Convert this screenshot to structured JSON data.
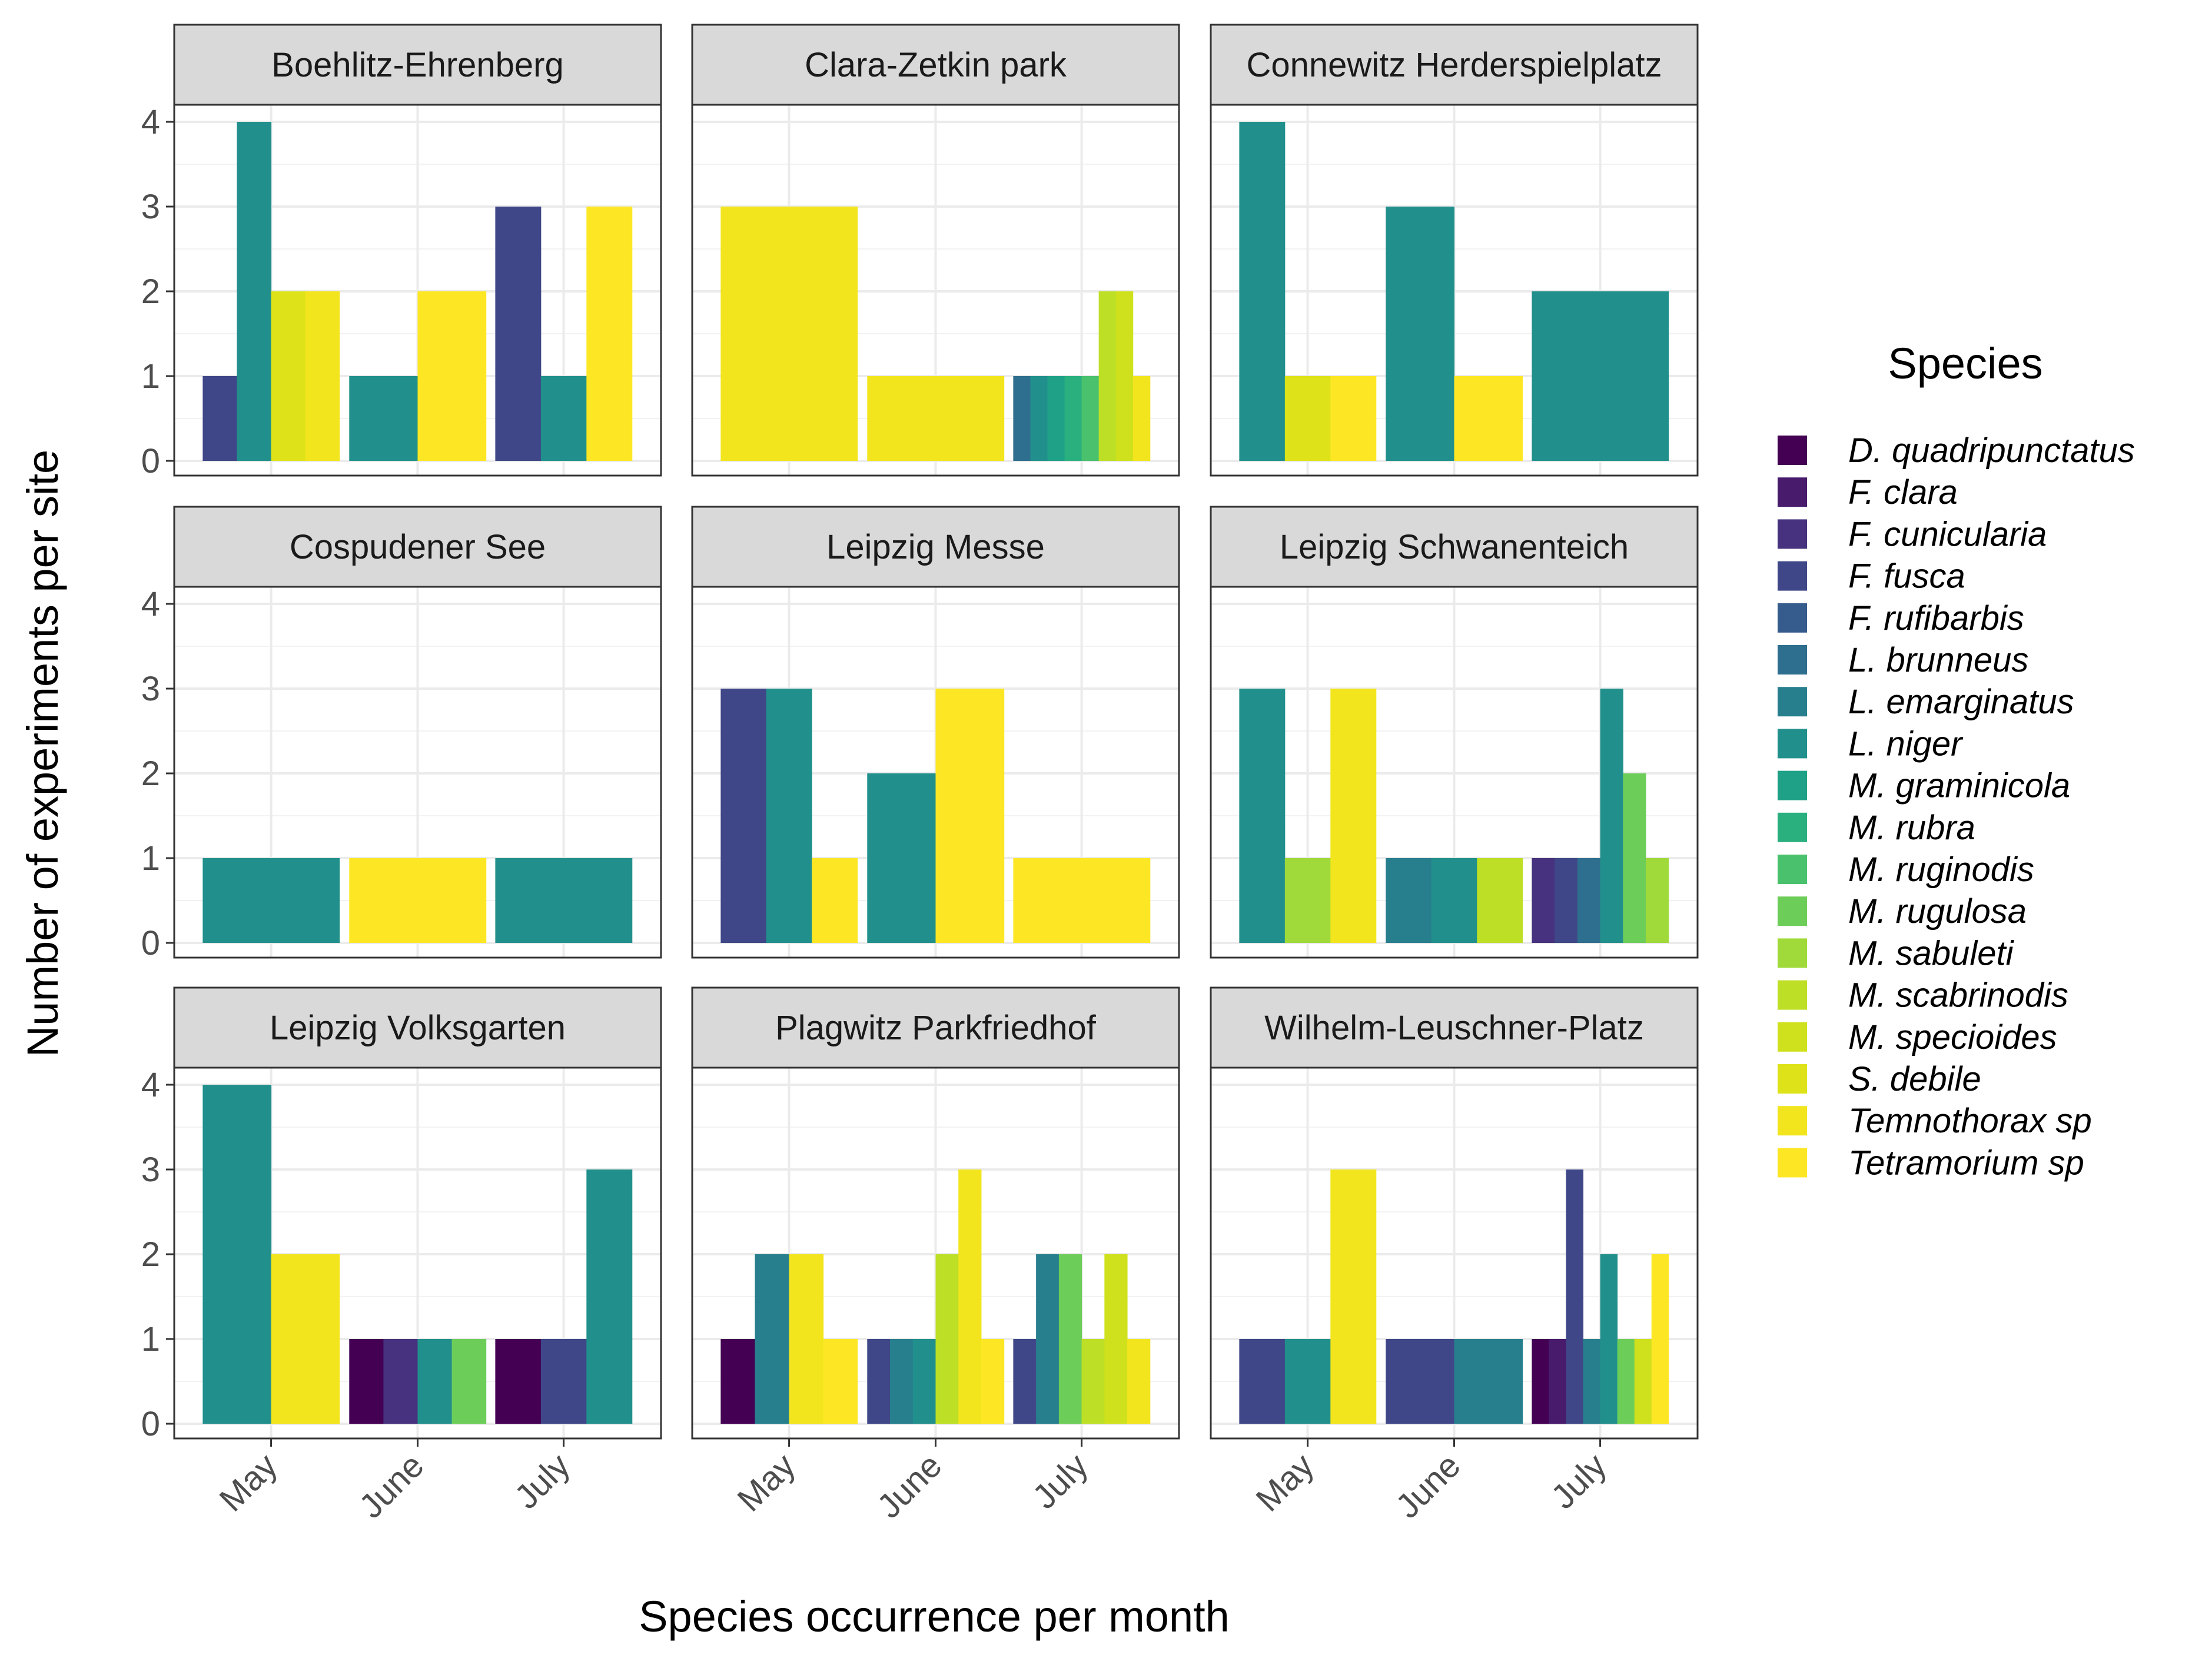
{
  "chart_data": {
    "type": "bar",
    "xlabel": "Species occurrence per month",
    "ylabel": "Number of experiments per site",
    "ylim": [
      0,
      4
    ],
    "y_ticks": [
      "0",
      "1",
      "2",
      "3",
      "4"
    ],
    "months": [
      "May",
      "June",
      "July"
    ],
    "grid": true,
    "legend": {
      "title": "Species",
      "position": "right"
    },
    "species": [
      {
        "name": "D. quadripunctatus",
        "color": "#440154"
      },
      {
        "name": "F. clara",
        "color": "#481B6D"
      },
      {
        "name": "F. cunicularia",
        "color": "#46327E"
      },
      {
        "name": "F. fusca",
        "color": "#3F4788"
      },
      {
        "name": "F. rufibarbis",
        "color": "#365C8D"
      },
      {
        "name": "L. brunneus",
        "color": "#2E6E8E"
      },
      {
        "name": "L. emarginatus",
        "color": "#277F8E"
      },
      {
        "name": "L. niger",
        "color": "#21908C"
      },
      {
        "name": "M. graminicola",
        "color": "#1FA187"
      },
      {
        "name": "M. rubra",
        "color": "#2AB07F"
      },
      {
        "name": "M. ruginodis",
        "color": "#4AC16D"
      },
      {
        "name": "M. rugulosa",
        "color": "#6DCD59"
      },
      {
        "name": "M. sabuleti",
        "color": "#9FDA3A"
      },
      {
        "name": "M. scabrinodis",
        "color": "#BDDF26"
      },
      {
        "name": "M. specioides",
        "color": "#CFE11C"
      },
      {
        "name": "S. debile",
        "color": "#DDE318"
      },
      {
        "name": "Temnothorax sp",
        "color": "#F2E51D"
      },
      {
        "name": "Tetramorium sp",
        "color": "#FDE725"
      }
    ],
    "panels": [
      {
        "site": "Boehlitz-Ehrenberg",
        "bars": [
          {
            "month": "May",
            "species": "F. fusca",
            "value": 1
          },
          {
            "month": "May",
            "species": "L. niger",
            "value": 4
          },
          {
            "month": "May",
            "species": "S. debile",
            "value": 2
          },
          {
            "month": "May",
            "species": "Temnothorax sp",
            "value": 2
          },
          {
            "month": "June",
            "species": "L. niger",
            "value": 1
          },
          {
            "month": "June",
            "species": "Tetramorium sp",
            "value": 2
          },
          {
            "month": "July",
            "species": "F. fusca",
            "value": 3
          },
          {
            "month": "July",
            "species": "L. niger",
            "value": 1
          },
          {
            "month": "July",
            "species": "Tetramorium sp",
            "value": 3
          }
        ]
      },
      {
        "site": "Clara-Zetkin park",
        "bars": [
          {
            "month": "May",
            "species": "Temnothorax sp",
            "value": 3
          },
          {
            "month": "June",
            "species": "Temnothorax sp",
            "value": 1
          },
          {
            "month": "July",
            "species": "L. brunneus",
            "value": 1
          },
          {
            "month": "July",
            "species": "L. niger",
            "value": 1
          },
          {
            "month": "July",
            "species": "M. graminicola",
            "value": 1
          },
          {
            "month": "July",
            "species": "M. rubra",
            "value": 1
          },
          {
            "month": "July",
            "species": "M. ruginodis",
            "value": 1
          },
          {
            "month": "July",
            "species": "M. scabrinodis",
            "value": 2
          },
          {
            "month": "July",
            "species": "M. specioides",
            "value": 2
          },
          {
            "month": "July",
            "species": "Temnothorax sp",
            "value": 1
          }
        ]
      },
      {
        "site": "Connewitz Herderspielplatz",
        "bars": [
          {
            "month": "May",
            "species": "L. niger",
            "value": 4
          },
          {
            "month": "May",
            "species": "S. debile",
            "value": 1
          },
          {
            "month": "May",
            "species": "Tetramorium sp",
            "value": 1
          },
          {
            "month": "June",
            "species": "L. niger",
            "value": 3
          },
          {
            "month": "June",
            "species": "Tetramorium sp",
            "value": 1
          },
          {
            "month": "July",
            "species": "L. niger",
            "value": 2
          }
        ]
      },
      {
        "site": "Cospudener See",
        "bars": [
          {
            "month": "May",
            "species": "L. niger",
            "value": 1
          },
          {
            "month": "June",
            "species": "Tetramorium sp",
            "value": 1
          },
          {
            "month": "July",
            "species": "L. niger",
            "value": 1
          }
        ]
      },
      {
        "site": "Leipzig Messe",
        "bars": [
          {
            "month": "May",
            "species": "F. fusca",
            "value": 3
          },
          {
            "month": "May",
            "species": "L. niger",
            "value": 3
          },
          {
            "month": "May",
            "species": "Tetramorium sp",
            "value": 1
          },
          {
            "month": "June",
            "species": "L. niger",
            "value": 2
          },
          {
            "month": "June",
            "species": "Tetramorium sp",
            "value": 3
          },
          {
            "month": "July",
            "species": "Tetramorium sp",
            "value": 1
          }
        ]
      },
      {
        "site": "Leipzig Schwanenteich",
        "bars": [
          {
            "month": "May",
            "species": "L. niger",
            "value": 3
          },
          {
            "month": "May",
            "species": "M. sabuleti",
            "value": 1
          },
          {
            "month": "May",
            "species": "Temnothorax sp",
            "value": 3
          },
          {
            "month": "June",
            "species": "L. emarginatus",
            "value": 1
          },
          {
            "month": "June",
            "species": "L. niger",
            "value": 1
          },
          {
            "month": "June",
            "species": "M. scabrinodis",
            "value": 1
          },
          {
            "month": "July",
            "species": "F. cunicularia",
            "value": 1
          },
          {
            "month": "July",
            "species": "F. fusca",
            "value": 1
          },
          {
            "month": "July",
            "species": "L. brunneus",
            "value": 1
          },
          {
            "month": "July",
            "species": "L. niger",
            "value": 3
          },
          {
            "month": "July",
            "species": "M. rugulosa",
            "value": 2
          },
          {
            "month": "July",
            "species": "M. sabuleti",
            "value": 1
          }
        ]
      },
      {
        "site": "Leipzig Volksgarten",
        "bars": [
          {
            "month": "May",
            "species": "L. niger",
            "value": 4
          },
          {
            "month": "May",
            "species": "Temnothorax sp",
            "value": 2
          },
          {
            "month": "June",
            "species": "D. quadripunctatus",
            "value": 1
          },
          {
            "month": "June",
            "species": "F. cunicularia",
            "value": 1
          },
          {
            "month": "June",
            "species": "L. niger",
            "value": 1
          },
          {
            "month": "June",
            "species": "M. rugulosa",
            "value": 1
          },
          {
            "month": "July",
            "species": "D. quadripunctatus",
            "value": 1
          },
          {
            "month": "July",
            "species": "F. fusca",
            "value": 1
          },
          {
            "month": "July",
            "species": "L. niger",
            "value": 3
          }
        ]
      },
      {
        "site": "Plagwitz Parkfriedhof",
        "bars": [
          {
            "month": "May",
            "species": "D. quadripunctatus",
            "value": 1
          },
          {
            "month": "May",
            "species": "L. emarginatus",
            "value": 2
          },
          {
            "month": "May",
            "species": "Temnothorax sp",
            "value": 2
          },
          {
            "month": "May",
            "species": "Tetramorium sp",
            "value": 1
          },
          {
            "month": "June",
            "species": "F. fusca",
            "value": 1
          },
          {
            "month": "June",
            "species": "L. emarginatus",
            "value": 1
          },
          {
            "month": "June",
            "species": "L. niger",
            "value": 1
          },
          {
            "month": "June",
            "species": "M. scabrinodis",
            "value": 2
          },
          {
            "month": "June",
            "species": "Temnothorax sp",
            "value": 3
          },
          {
            "month": "June",
            "species": "Tetramorium sp",
            "value": 1
          },
          {
            "month": "July",
            "species": "F. fusca",
            "value": 1
          },
          {
            "month": "July",
            "species": "L. emarginatus",
            "value": 2
          },
          {
            "month": "July",
            "species": "M. rugulosa",
            "value": 2
          },
          {
            "month": "July",
            "species": "M. scabrinodis",
            "value": 1
          },
          {
            "month": "July",
            "species": "M. specioides",
            "value": 2
          },
          {
            "month": "July",
            "species": "Temnothorax sp",
            "value": 1
          }
        ]
      },
      {
        "site": "Wilhelm-Leuschner-Platz",
        "bars": [
          {
            "month": "May",
            "species": "F. fusca",
            "value": 1
          },
          {
            "month": "May",
            "species": "L. niger",
            "value": 1
          },
          {
            "month": "May",
            "species": "Temnothorax sp",
            "value": 3
          },
          {
            "month": "June",
            "species": "F. fusca",
            "value": 1
          },
          {
            "month": "June",
            "species": "L. emarginatus",
            "value": 1
          },
          {
            "month": "July",
            "species": "D. quadripunctatus",
            "value": 1
          },
          {
            "month": "July",
            "species": "F. clara",
            "value": 1
          },
          {
            "month": "July",
            "species": "F. fusca",
            "value": 3
          },
          {
            "month": "July",
            "species": "L. emarginatus",
            "value": 1
          },
          {
            "month": "July",
            "species": "L. niger",
            "value": 2
          },
          {
            "month": "July",
            "species": "M. rugulosa",
            "value": 1
          },
          {
            "month": "July",
            "species": "M. specioides",
            "value": 1
          },
          {
            "month": "July",
            "species": "Tetramorium sp",
            "value": 2
          }
        ]
      }
    ]
  }
}
